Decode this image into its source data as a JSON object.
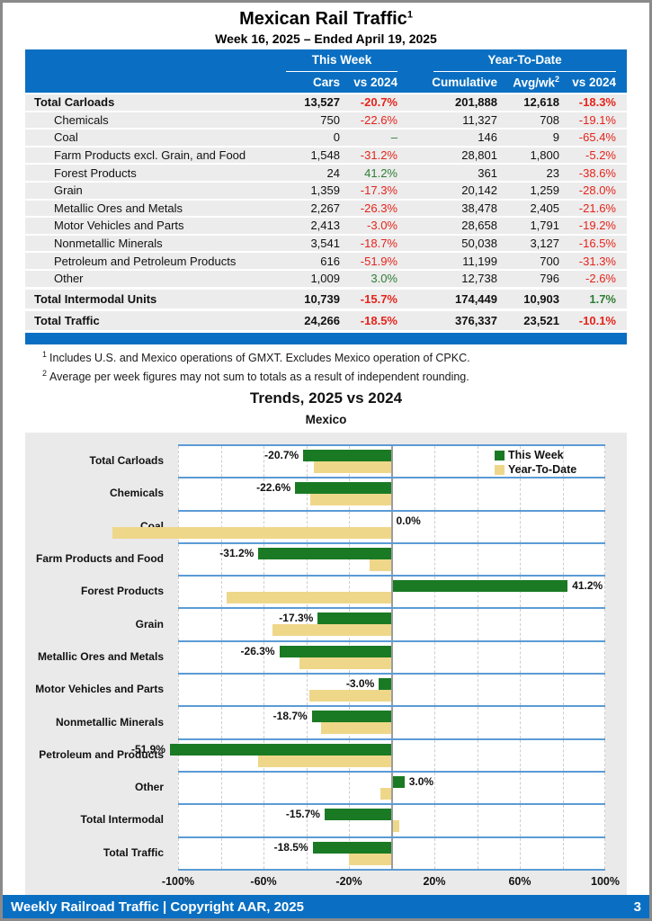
{
  "page": {
    "title": "Mexican Rail Traffic",
    "title_sup": "1",
    "subtitle": "Week 16, 2025 – Ended April 19, 2025",
    "footer_text": "Weekly Railroad Traffic | Copyright AAR, 2025",
    "footer_page": "3"
  },
  "colors": {
    "header_blue": "#0a6fc2",
    "band_line_blue": "#5b9bd5",
    "bar_green": "#1a7a24",
    "bar_tan": "#efd78a",
    "neg_red": "#e5231b",
    "pos_green": "#2e7d35"
  },
  "table": {
    "group_this_week": "This Week",
    "group_ytd": "Year-To-Date",
    "col_cars": "Cars",
    "col_tw_vs": "vs 2024",
    "col_cumulative": "Cumulative",
    "col_avgwk": "Avg/wk",
    "col_avgwk_sup": "2",
    "col_ytd_vs": "vs 2024",
    "rows": [
      {
        "label": "Total Carloads",
        "bold": true,
        "indent": false,
        "tall": false,
        "cars": "13,527",
        "tw": "-20.7%",
        "cumulative": "201,888",
        "avg": "12,618",
        "ytd": "-18.3%"
      },
      {
        "label": "Chemicals",
        "bold": false,
        "indent": true,
        "tall": false,
        "cars": "750",
        "tw": "-22.6%",
        "cumulative": "11,327",
        "avg": "708",
        "ytd": "-19.1%"
      },
      {
        "label": "Coal",
        "bold": false,
        "indent": true,
        "tall": false,
        "cars": "0",
        "tw": "–",
        "cumulative": "146",
        "avg": "9",
        "ytd": "-65.4%"
      },
      {
        "label": "Farm Products excl. Grain, and Food",
        "bold": false,
        "indent": true,
        "tall": false,
        "cars": "1,548",
        "tw": "-31.2%",
        "cumulative": "28,801",
        "avg": "1,800",
        "ytd": "-5.2%"
      },
      {
        "label": "Forest Products",
        "bold": false,
        "indent": true,
        "tall": false,
        "cars": "24",
        "tw": "41.2%",
        "cumulative": "361",
        "avg": "23",
        "ytd": "-38.6%"
      },
      {
        "label": "Grain",
        "bold": false,
        "indent": true,
        "tall": false,
        "cars": "1,359",
        "tw": "-17.3%",
        "cumulative": "20,142",
        "avg": "1,259",
        "ytd": "-28.0%"
      },
      {
        "label": "Metallic Ores and Metals",
        "bold": false,
        "indent": true,
        "tall": false,
        "cars": "2,267",
        "tw": "-26.3%",
        "cumulative": "38,478",
        "avg": "2,405",
        "ytd": "-21.6%"
      },
      {
        "label": "Motor Vehicles and Parts",
        "bold": false,
        "indent": true,
        "tall": false,
        "cars": "2,413",
        "tw": "-3.0%",
        "cumulative": "28,658",
        "avg": "1,791",
        "ytd": "-19.2%"
      },
      {
        "label": "Nonmetallic Minerals",
        "bold": false,
        "indent": true,
        "tall": false,
        "cars": "3,541",
        "tw": "-18.7%",
        "cumulative": "50,038",
        "avg": "3,127",
        "ytd": "-16.5%"
      },
      {
        "label": "Petroleum and Petroleum Products",
        "bold": false,
        "indent": true,
        "tall": false,
        "cars": "616",
        "tw": "-51.9%",
        "cumulative": "11,199",
        "avg": "700",
        "ytd": "-31.3%"
      },
      {
        "label": "Other",
        "bold": false,
        "indent": true,
        "tall": false,
        "cars": "1,009",
        "tw": "3.0%",
        "cumulative": "12,738",
        "avg": "796",
        "ytd": "-2.6%"
      },
      {
        "label": "Total Intermodal Units",
        "bold": true,
        "indent": false,
        "tall": true,
        "cars": "10,739",
        "tw": "-15.7%",
        "cumulative": "174,449",
        "avg": "10,903",
        "ytd": "1.7%"
      },
      {
        "label": "Total Traffic",
        "bold": true,
        "indent": false,
        "tall": true,
        "cars": "24,266",
        "tw": "-18.5%",
        "cumulative": "376,337",
        "avg": "23,521",
        "ytd": "-10.1%"
      }
    ],
    "footnotes": [
      {
        "sup": "1",
        "text": "Includes U.S. and Mexico operations of GMXT. Excludes Mexico operation of CPKC."
      },
      {
        "sup": "2",
        "text": "Average per week figures may not sum to totals as a result of independent rounding."
      }
    ]
  },
  "chart_data": {
    "type": "bar",
    "orientation": "horizontal",
    "title": "Trends, 2025 vs 2024",
    "subtitle": "Mexico",
    "categories": [
      "Total Carloads",
      "Chemicals",
      "Coal",
      "Farm Products and Food",
      "Forest Products",
      "Grain",
      "Metallic Ores and Metals",
      "Motor Vehicles and Parts",
      "Nonmetallic Minerals",
      "Petroleum and Products",
      "Other",
      "Total Intermodal",
      "Total Traffic"
    ],
    "series": [
      {
        "name": "This Week",
        "color": "#1a7a24",
        "values": [
          -20.7,
          -22.6,
          0.0,
          -31.2,
          41.2,
          -17.3,
          -26.3,
          -3.0,
          -18.7,
          -51.9,
          3.0,
          -15.7,
          -18.5
        ]
      },
      {
        "name": "Year-To-Date",
        "color": "#efd78a",
        "values": [
          -18.3,
          -19.1,
          -65.4,
          -5.2,
          -38.6,
          -28.0,
          -21.6,
          -19.2,
          -16.5,
          -31.3,
          -2.6,
          1.7,
          -10.1
        ]
      }
    ],
    "bar_labels": [
      "-20.7%",
      "-22.6%",
      "0.0%",
      "-31.2%",
      "41.2%",
      "-17.3%",
      "-26.3%",
      "-3.0%",
      "-18.7%",
      "-51.9%",
      "3.0%",
      "-15.7%",
      "-18.5%"
    ],
    "xlim": [
      -100,
      100
    ],
    "xticks": [
      -100,
      -60,
      -20,
      20,
      60,
      100
    ],
    "xtick_labels": [
      "-100%",
      "-60%",
      "-20%",
      "20%",
      "60%",
      "100%"
    ],
    "gridline_step": 20,
    "grid": "dashed-vertical",
    "legend_position": "top-right"
  }
}
